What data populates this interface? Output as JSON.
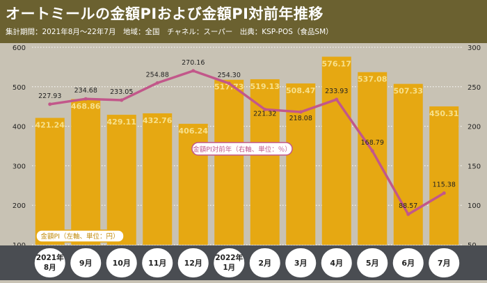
{
  "header": {
    "title": "オートミールの金額PIおよび金額PI対前年推移",
    "subtitle": "集計期間：2021年8月～22年7月　地域：全国　チャネル：スーパー　出典：KSP-POS（食品SM）"
  },
  "chart_data": {
    "type": "bar",
    "categories": [
      [
        "2021年",
        "8月"
      ],
      [
        "9月"
      ],
      [
        "10月"
      ],
      [
        "11月"
      ],
      [
        "12月"
      ],
      [
        "2022年",
        "1月"
      ],
      [
        "2月"
      ],
      [
        "3月"
      ],
      [
        "4月"
      ],
      [
        "5月"
      ],
      [
        "6月"
      ],
      [
        "7月"
      ]
    ],
    "series": [
      {
        "name": "金額PI（左軸、単位：円）",
        "type": "bar",
        "axis": "left",
        "values": [
          421.24,
          468.86,
          429.11,
          432.76,
          406.24,
          517.73,
          519.13,
          508.47,
          576.17,
          537.08,
          507.33,
          450.31
        ],
        "labels": [
          "421.24",
          "468.86",
          "429.11",
          "432.76",
          "406.24",
          "517.73",
          "519.13",
          "508.47",
          "576.17",
          "537.08",
          "507.33",
          "450.31"
        ]
      },
      {
        "name": "金額PI対前年（右軸、単位：％）",
        "type": "line",
        "axis": "right",
        "values": [
          227.93,
          234.68,
          233.05,
          254.88,
          270.16,
          254.3,
          221.32,
          218.08,
          233.93,
          168.79,
          88.57,
          115.38
        ],
        "labels": [
          "227.93",
          "234.68",
          "233.05",
          "254.88",
          "270.16",
          "254.30",
          "221.32",
          "218.08",
          "233.93",
          "168.79",
          "88.57",
          "115.38"
        ]
      }
    ],
    "y_left": {
      "min": 100,
      "max": 600,
      "ticks": [
        "100",
        "200",
        "300",
        "400",
        "500",
        "600"
      ]
    },
    "y_right": {
      "min": 50,
      "max": 300,
      "ticks": [
        "50",
        "100",
        "150",
        "200",
        "250",
        "300"
      ]
    },
    "legend_bar": "金額PI（左軸、単位：円）",
    "legend_line": "金額PI対前年（右軸、単位：％）",
    "colors": {
      "bar": "#e6a812",
      "bar_label": "#f7e08c",
      "line": "#c2578a",
      "plot_bg": "#c8c2b4",
      "grid": "#ffffff",
      "label_dark": "#222222",
      "band": "#4a4d52"
    }
  }
}
